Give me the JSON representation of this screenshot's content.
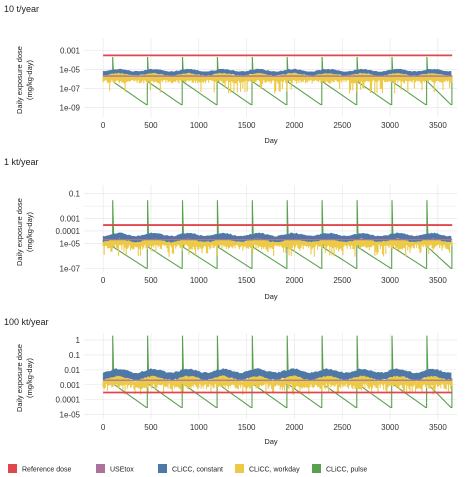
{
  "chart_data": [
    {
      "type": "line",
      "title": "10 t/year",
      "xlabel": "Day",
      "ylabel": [
        "Daily exposure dose",
        "(mg/kg-day)"
      ],
      "y_scale": "log",
      "xlim": [
        -200,
        3700
      ],
      "ylim": [
        1e-10,
        0.02
      ],
      "x_ticks": [
        0,
        500,
        1000,
        1500,
        2000,
        2500,
        3000,
        3500
      ],
      "y_ticks": [
        0.001,
        1e-05,
        1e-07,
        1e-09
      ],
      "y_tick_labels": [
        "0.001",
        "1e-05",
        "1e-07",
        "1e-09"
      ],
      "grid": true,
      "series": [
        {
          "name": "Reference dose",
          "values": [
            0.0003
          ]
        },
        {
          "name": "USEtox",
          "values": [
            2e-06
          ]
        },
        {
          "name": "CLiCC, constant",
          "baseline": 5e-06,
          "band_low": 2.5e-06,
          "band_high": 9e-06
        },
        {
          "name": "CLiCC, workday",
          "baseline": 8e-07,
          "band_low": 3e-08,
          "band_high": 4e-06
        },
        {
          "name": "CLiCC, pulse",
          "peak": 0.0002,
          "floor": 2e-09
        }
      ]
    },
    {
      "type": "line",
      "title": "1 kt/year",
      "xlabel": "Day",
      "ylabel": [
        "Daily exposure dose",
        "(mg/kg-day)"
      ],
      "y_scale": "log",
      "xlim": [
        -200,
        3700
      ],
      "ylim": [
        5e-08,
        0.5
      ],
      "x_ticks": [
        0,
        500,
        1000,
        1500,
        2000,
        2500,
        3000,
        3500
      ],
      "y_ticks": [
        0.1,
        0.001,
        0.0001,
        1e-05,
        1e-07
      ],
      "y_tick_labels": [
        "0.1",
        "0.001",
        "0.0001",
        "1e-05",
        "1e-07"
      ],
      "extra_y_ticks": [
        0.01
      ],
      "grid": true,
      "series": [
        {
          "name": "Reference dose",
          "values": [
            0.0003
          ]
        },
        {
          "name": "USEtox",
          "values": [
            2e-05
          ]
        },
        {
          "name": "CLiCC, constant",
          "baseline": 3e-05,
          "band_low": 1.5e-05,
          "band_high": 7e-05
        },
        {
          "name": "CLiCC, workday",
          "baseline": 8e-06,
          "band_low": 8e-07,
          "band_high": 3e-05
        },
        {
          "name": "CLiCC, pulse",
          "peak": 0.03,
          "floor": 1e-07
        }
      ]
    },
    {
      "type": "line",
      "title": "100 kt/year",
      "xlabel": "Day",
      "ylabel": [
        "Daily exposure dose",
        "(mg/kg-day)"
      ],
      "y_scale": "log",
      "xlim": [
        -200,
        3700
      ],
      "ylim": [
        5e-06,
        3
      ],
      "x_ticks": [
        0,
        500,
        1000,
        1500,
        2000,
        2500,
        3000,
        3500
      ],
      "y_ticks": [
        1,
        0.1,
        0.01,
        0.001,
        0.0001,
        1e-05
      ],
      "y_tick_labels": [
        "1",
        "0.1",
        "0.01",
        "0.001",
        "0.0001",
        "1e-05"
      ],
      "grid": true,
      "series": [
        {
          "name": "Reference dose",
          "values": [
            0.0003
          ]
        },
        {
          "name": "USEtox",
          "values": [
            0.002
          ]
        },
        {
          "name": "CLiCC, constant",
          "baseline": 0.005,
          "band_low": 0.002,
          "band_high": 0.01
        },
        {
          "name": "CLiCC, workday",
          "baseline": 0.0012,
          "band_low": 0.0002,
          "band_high": 0.004
        },
        {
          "name": "CLiCC, pulse",
          "peak": 2,
          "floor": 3e-05
        }
      ]
    }
  ],
  "legend": {
    "items": [
      {
        "label": "Reference dose",
        "color": "#e0474c"
      },
      {
        "label": "USEtox",
        "color": "#a9739c"
      },
      {
        "label": "CLiCC, constant",
        "color": "#4e79a7"
      },
      {
        "label": "CLiCC, workday",
        "color": "#edc948"
      },
      {
        "label": "CLiCC, pulse",
        "color": "#59a14f"
      }
    ]
  },
  "colors": {
    "reference": "#e0474c",
    "usetox": "#a9739c",
    "constant": "#4e79a7",
    "workday": "#edc948",
    "pulse": "#59a14f",
    "grid": "#e4e4e4"
  }
}
